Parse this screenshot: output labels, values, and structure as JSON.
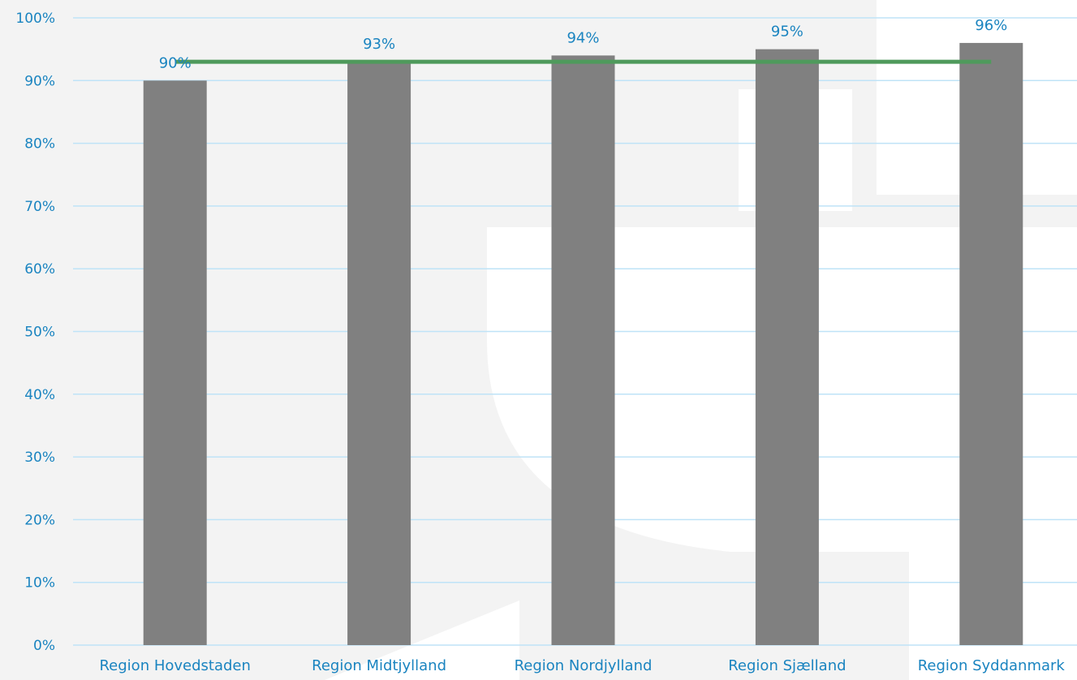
{
  "chart_data": {
    "type": "bar",
    "title": "",
    "xlabel": "",
    "ylabel": "",
    "categories": [
      "Region Hovedstaden",
      "Region Midtjylland",
      "Region Nordjylland",
      "Region Sjælland",
      "Region Syddanmark"
    ],
    "series": [
      {
        "type": "bar",
        "values": [
          90,
          93,
          94,
          95,
          96
        ],
        "value_labels": [
          "90%",
          "93%",
          "94%",
          "95%",
          "96%"
        ],
        "color": "#808080"
      },
      {
        "type": "line",
        "values": [
          93,
          93,
          93,
          93,
          93
        ],
        "color": "#4f9a5c"
      }
    ],
    "ylim": [
      0,
      100
    ],
    "yticks": [
      0,
      10,
      20,
      30,
      40,
      50,
      60,
      70,
      80,
      90,
      100
    ],
    "ytick_labels": [
      "0%",
      "10%",
      "20%",
      "30%",
      "40%",
      "50%",
      "60%",
      "70%",
      "80%",
      "90%",
      "100%"
    ],
    "grid": true,
    "legend": "none",
    "colors": {
      "text": "#1a84c0",
      "gridline": "#bfe3f7",
      "background": "#f3f3f3"
    }
  }
}
